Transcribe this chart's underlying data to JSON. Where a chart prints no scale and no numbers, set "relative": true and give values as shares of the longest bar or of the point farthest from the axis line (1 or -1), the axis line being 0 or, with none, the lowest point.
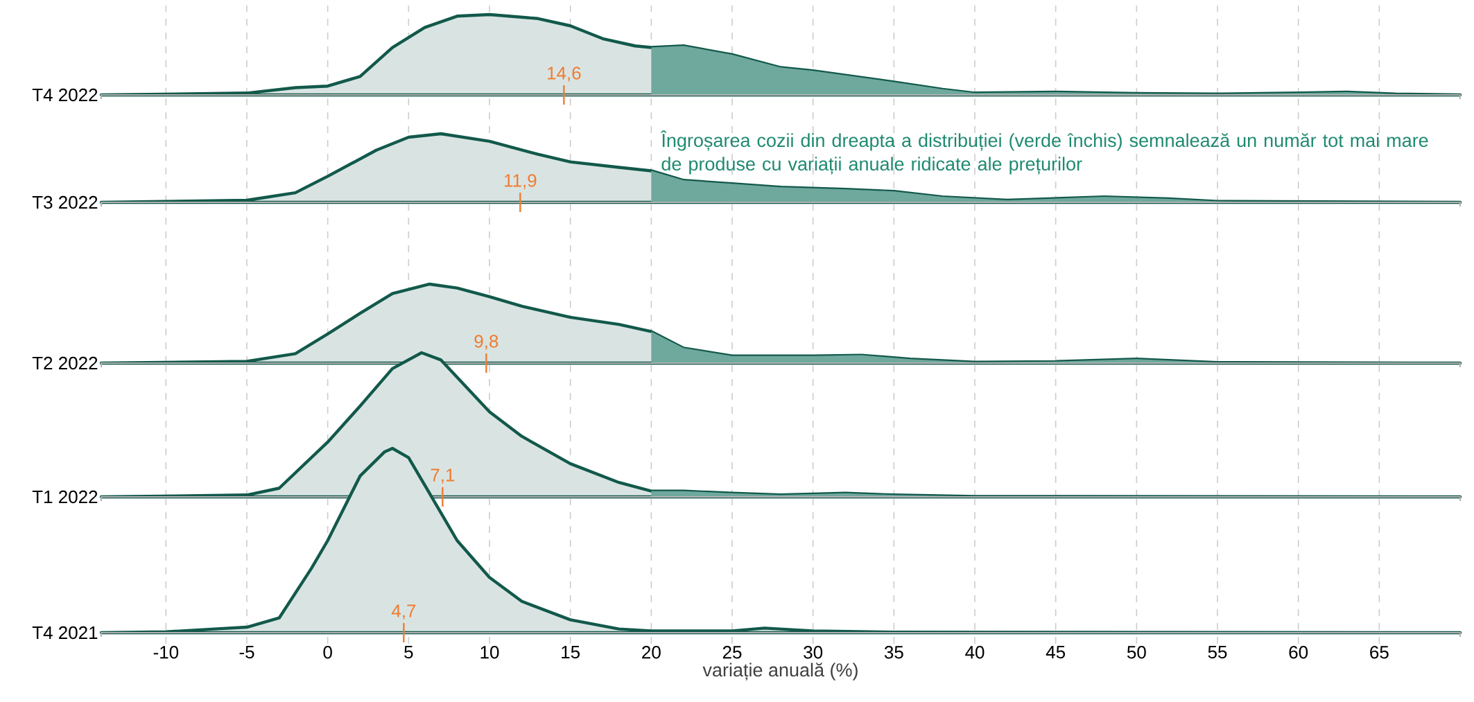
{
  "chart_data": [
    {
      "type": "area",
      "relative": true,
      "xlim": [
        -14,
        70
      ],
      "xticks": [
        -10,
        -5,
        0,
        5,
        10,
        15,
        20,
        25,
        30,
        35,
        40,
        45,
        50,
        55,
        60,
        65
      ],
      "grid": "x",
      "tick_labels": false,
      "series": [
        {
          "name": "T4 2022",
          "color": "#12594b",
          "x": [
            -14,
            -5,
            -2,
            0,
            2,
            4,
            6,
            8,
            10,
            13,
            15,
            17,
            19,
            20,
            22,
            25,
            28,
            30,
            35,
            38,
            40,
            45,
            50,
            55,
            60,
            63,
            66,
            70
          ],
          "values": [
            0,
            0.023,
            0.09,
            0.11,
            0.23,
            0.59,
            0.84,
            0.98,
            1,
            0.95,
            0.86,
            0.7,
            0.61,
            0.59,
            0.61,
            0.5,
            0.34,
            0.3,
            0.16,
            0.07,
            0.023,
            0.034,
            0.018,
            0.011,
            0.023,
            0.034,
            0.011,
            0
          ]
        },
        {
          "color": "#6fa89d",
          "x": [
            20,
            22,
            25,
            28,
            30,
            35,
            38,
            40,
            45,
            50,
            55,
            60,
            63,
            66,
            70
          ],
          "values": [
            0.59,
            0.61,
            0.5,
            0.34,
            0.3,
            0.16,
            0.07,
            0.023,
            0.034,
            0.018,
            0.011,
            0.023,
            0.034,
            0.011,
            0
          ]
        }
      ],
      "ref_lines": [
        {
          "axis": "x",
          "value": 14.6,
          "label": "14,6",
          "color": "#f07c30"
        }
      ]
    },
    {
      "type": "area",
      "relative": true,
      "xlim": [
        -14,
        70
      ],
      "xticks": [
        -10,
        -5,
        0,
        5,
        10,
        15,
        20,
        25,
        30,
        35,
        40,
        45,
        50,
        55,
        60,
        65
      ],
      "grid": "x",
      "tick_labels": false,
      "annotations": [
        "Îngroșarea cozii din dreapta a distribuției (verde închis) semnalează un număr tot mai mare de produse cu variații anuale ridicate ale prețurilor"
      ],
      "series": [
        {
          "name": "T3 2022",
          "color": "#12594b",
          "x": [
            -14,
            -5,
            -2,
            0,
            3,
            5,
            7,
            10,
            13,
            15,
            18,
            20,
            22,
            25,
            28,
            32,
            35,
            38,
            42,
            48,
            52,
            55,
            70
          ],
          "values": [
            0,
            0.03,
            0.14,
            0.38,
            0.76,
            0.95,
            1,
            0.89,
            0.7,
            0.59,
            0.51,
            0.46,
            0.32,
            0.27,
            0.22,
            0.19,
            0.16,
            0.08,
            0.03,
            0.08,
            0.05,
            0.014,
            0
          ]
        },
        {
          "color": "#6fa89d",
          "x": [
            20,
            22,
            25,
            28,
            32,
            35,
            38,
            42,
            48,
            52,
            55,
            70
          ],
          "values": [
            0.46,
            0.32,
            0.27,
            0.22,
            0.19,
            0.16,
            0.08,
            0.03,
            0.08,
            0.05,
            0.014,
            0
          ]
        }
      ],
      "ref_lines": [
        {
          "axis": "x",
          "value": 11.9,
          "label": "11,9",
          "color": "#f07c30"
        }
      ]
    },
    {
      "type": "area",
      "relative": true,
      "xlim": [
        -14,
        70
      ],
      "xticks": [
        -10,
        -5,
        0,
        5,
        10,
        15,
        20,
        25,
        30,
        35,
        40,
        45,
        50,
        55,
        60,
        65
      ],
      "grid": "x",
      "tick_labels": false,
      "series": [
        {
          "name": "T2 2022",
          "color": "#12594b",
          "x": [
            -14,
            -5,
            -2,
            0,
            2,
            4,
            6.3,
            8,
            10,
            12,
            15,
            18,
            20,
            22,
            25,
            30,
            33,
            36,
            40,
            45,
            50,
            55,
            70
          ],
          "values": [
            0,
            0.023,
            0.12,
            0.37,
            0.63,
            0.88,
            1,
            0.95,
            0.84,
            0.72,
            0.58,
            0.49,
            0.4,
            0.19,
            0.09,
            0.09,
            0.1,
            0.05,
            0.012,
            0.019,
            0.05,
            0.007,
            0
          ]
        },
        {
          "color": "#6fa89d",
          "x": [
            20,
            22,
            25,
            30,
            33,
            36,
            40,
            45,
            50,
            55,
            70
          ],
          "values": [
            0.4,
            0.19,
            0.09,
            0.09,
            0.1,
            0.05,
            0.012,
            0.019,
            0.05,
            0.007,
            0
          ]
        }
      ],
      "ref_lines": [
        {
          "axis": "x",
          "value": 9.8,
          "label": "9,8",
          "color": "#f07c30"
        }
      ]
    },
    {
      "type": "area",
      "relative": true,
      "xlim": [
        -14,
        70
      ],
      "xticks": [
        -10,
        -5,
        0,
        5,
        10,
        15,
        20,
        25,
        30,
        35,
        40,
        45,
        50,
        55,
        60,
        65
      ],
      "grid": "x",
      "tick_labels": false,
      "series": [
        {
          "name": "T1 2022",
          "color": "#12594b",
          "x": [
            -14,
            -5,
            -3,
            0,
            2,
            4,
            5.8,
            7,
            10,
            12,
            15,
            18,
            20,
            22,
            25,
            28,
            32,
            35,
            40,
            70
          ],
          "values": [
            0,
            0.013,
            0.06,
            0.38,
            0.63,
            0.89,
            1,
            0.95,
            0.59,
            0.42,
            0.23,
            0.1,
            0.04,
            0.04,
            0.025,
            0.013,
            0.025,
            0.013,
            0.003,
            0
          ]
        },
        {
          "color": "#6fa89d",
          "x": [
            20,
            22,
            25,
            28,
            32,
            35,
            40,
            70
          ],
          "values": [
            0.04,
            0.04,
            0.025,
            0.013,
            0.025,
            0.013,
            0.003,
            0
          ]
        }
      ],
      "ref_lines": [
        {
          "axis": "x",
          "value": 7.1,
          "label": "7,1",
          "color": "#f07c30"
        }
      ]
    },
    {
      "type": "area",
      "relative": true,
      "xlim": [
        -14,
        70
      ],
      "xticks": [
        -10,
        -5,
        0,
        5,
        10,
        15,
        20,
        25,
        30,
        35,
        40,
        45,
        50,
        55,
        60,
        65
      ],
      "grid": "x",
      "xlabel": "variație anuală (%)",
      "series": [
        {
          "name": "T4 2021",
          "color": "#12594b",
          "x": [
            -14,
            -10,
            -7,
            -5,
            -3,
            -1,
            0,
            2,
            3.5,
            4,
            5,
            6,
            8,
            10,
            12,
            15,
            18,
            20,
            25,
            27,
            30,
            35,
            70
          ],
          "values": [
            0,
            0.005,
            0.02,
            0.03,
            0.08,
            0.35,
            0.5,
            0.85,
            0.98,
            1,
            0.95,
            0.8,
            0.5,
            0.3,
            0.17,
            0.07,
            0.02,
            0.01,
            0.01,
            0.025,
            0.01,
            0.003,
            0
          ]
        }
      ],
      "ref_lines": [
        {
          "axis": "x",
          "value": 4.7,
          "label": "4,7",
          "color": "#f07c30"
        }
      ]
    }
  ]
}
